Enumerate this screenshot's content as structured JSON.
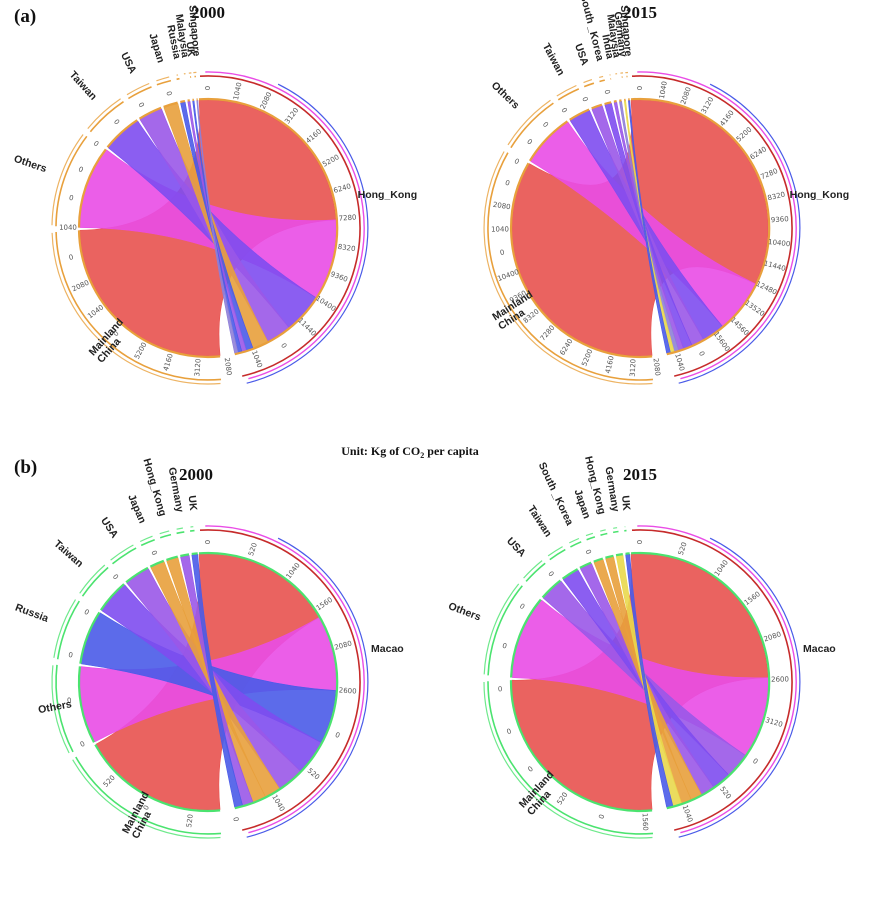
{
  "figure": {
    "panel_a_label": "(a)",
    "panel_b_label": "(b)",
    "unit_prefix": "Unit: Kg of CO",
    "unit_sub": "2",
    "unit_suffix": " per capita"
  },
  "colors": {
    "red": "#e8524f",
    "magenta": "#e94de6",
    "blue": "#4a5be8",
    "violet": "#7e4cf0",
    "purple": "#9a58e8",
    "orange": "#e8a03c",
    "yellow": "#e9d84c",
    "lavender": "#8f7fd8",
    "green": "#4be36f",
    "gold": "#d9952f",
    "dark_red": "#c62b2b"
  },
  "chart_data": [
    {
      "id": "a2000",
      "type": "chord",
      "title": "2000",
      "center": "Hong_Kong",
      "highlight": "orange",
      "ticks": [
        "0",
        "1040",
        "2080",
        "3120",
        "4160",
        "5200",
        "6240",
        "7280",
        "8320",
        "9360",
        "10400",
        "11440",
        "0",
        "1040",
        "2080",
        "3120",
        "4160",
        "5200",
        "0",
        "1040",
        "2080",
        "0",
        "1040",
        "0",
        "0",
        "0",
        "0",
        "0",
        "0"
      ],
      "groups": [
        {
          "name": "Mainland China",
          "lines": [
            "Mainland",
            "China"
          ],
          "value": 5200,
          "color": "red"
        },
        {
          "name": "Others",
          "lines": [
            "Others"
          ],
          "value": 2100,
          "color": "magenta"
        },
        {
          "name": "Taiwan",
          "lines": [
            "Taiwan"
          ],
          "value": 1040,
          "color": "violet"
        },
        {
          "name": "USA",
          "lines": [
            "USA"
          ],
          "value": 650,
          "color": "purple"
        },
        {
          "name": "Japan",
          "lines": [
            "Japan"
          ],
          "value": 420,
          "color": "orange"
        },
        {
          "name": "Russia",
          "lines": [
            "Russia"
          ],
          "value": 180,
          "color": "blue"
        },
        {
          "name": "Malaysia",
          "lines": [
            "Malaysia"
          ],
          "value": 120,
          "color": "purple"
        },
        {
          "name": "UK",
          "lines": [
            "UK"
          ],
          "value": 100,
          "color": "blue"
        },
        {
          "name": "Singapore",
          "lines": [
            "Singapore"
          ],
          "value": 90,
          "color": "lavender"
        }
      ]
    },
    {
      "id": "a2015",
      "type": "chord",
      "title": "2015",
      "center": "Hong_Kong",
      "highlight": "orange",
      "ticks": [
        "0",
        "1040",
        "2080",
        "3120",
        "4160",
        "5200",
        "6240",
        "7280",
        "8320",
        "9360",
        "10400",
        "11440",
        "12480",
        "13520",
        "14560",
        "15600",
        "0",
        "1040",
        "2080",
        "3120",
        "4160",
        "5200",
        "6240",
        "7280",
        "8320",
        "9360",
        "10400",
        "0",
        "1040",
        "2080",
        "0",
        "0",
        "0",
        "0",
        "0",
        "0",
        "0"
      ],
      "groups": [
        {
          "name": "Mainland China",
          "lines": [
            "Mainland",
            "China"
          ],
          "value": 10400,
          "color": "red"
        },
        {
          "name": "Others",
          "lines": [
            "Others"
          ],
          "value": 2100,
          "color": "magenta"
        },
        {
          "name": "Taiwan",
          "lines": [
            "Taiwan"
          ],
          "value": 900,
          "color": "violet"
        },
        {
          "name": "USA",
          "lines": [
            "USA"
          ],
          "value": 500,
          "color": "purple"
        },
        {
          "name": "South_Korea",
          "lines": [
            "South _Korea"
          ],
          "value": 350,
          "color": "violet"
        },
        {
          "name": "India",
          "lines": [
            "India"
          ],
          "value": 200,
          "color": "purple"
        },
        {
          "name": "Malaysia",
          "lines": [
            "Malaysia"
          ],
          "value": 180,
          "color": "lavender"
        },
        {
          "name": "Germany",
          "lines": [
            "Germany"
          ],
          "value": 150,
          "color": "yellow"
        },
        {
          "name": "Singapore",
          "lines": [
            "Singapore"
          ],
          "value": 150,
          "color": "blue"
        }
      ]
    },
    {
      "id": "b2000",
      "type": "chord",
      "title": "2000",
      "center": "Macao",
      "highlight": "green",
      "ticks": [
        "0",
        "520",
        "1040",
        "1560",
        "2080",
        "2600",
        "0",
        "520",
        "1040",
        "0",
        "520",
        "0",
        "520",
        "0",
        "0",
        "0",
        "0",
        "0",
        "0"
      ],
      "groups": [
        {
          "name": "Mainland China",
          "lines": [
            "Mainland",
            "China"
          ],
          "value": 1050,
          "color": "red"
        },
        {
          "name": "Others",
          "lines": [
            "Others"
          ],
          "value": 560,
          "color": "magenta"
        },
        {
          "name": "Russia",
          "lines": [
            "Russia"
          ],
          "value": 400,
          "color": "blue"
        },
        {
          "name": "Taiwan",
          "lines": [
            "Taiwan"
          ],
          "value": 260,
          "color": "violet"
        },
        {
          "name": "USA",
          "lines": [
            "USA"
          ],
          "value": 200,
          "color": "purple"
        },
        {
          "name": "Japan",
          "lines": [
            "Japan"
          ],
          "value": 120,
          "color": "orange"
        },
        {
          "name": "Hong_Kong",
          "lines": [
            "Hong_Kong"
          ],
          "value": 100,
          "color": "orange"
        },
        {
          "name": "Germany",
          "lines": [
            "Germany"
          ],
          "value": 80,
          "color": "purple"
        },
        {
          "name": "UK",
          "lines": [
            "UK"
          ],
          "value": 60,
          "color": "blue"
        }
      ]
    },
    {
      "id": "b2015",
      "type": "chord",
      "title": "2015",
      "center": "Macao",
      "highlight": "green",
      "ticks": [
        "0",
        "520",
        "1040",
        "1560",
        "2080",
        "2600",
        "3120",
        "0",
        "520",
        "1040",
        "1560",
        "0",
        "520",
        "0",
        "0",
        "0",
        "0",
        "0",
        "0",
        "0"
      ],
      "groups": [
        {
          "name": "Mainland China",
          "lines": [
            "Mainland",
            "China"
          ],
          "value": 1600,
          "color": "red"
        },
        {
          "name": "Others",
          "lines": [
            "Others"
          ],
          "value": 640,
          "color": "magenta"
        },
        {
          "name": "USA",
          "lines": [
            "USA"
          ],
          "value": 200,
          "color": "purple"
        },
        {
          "name": "Taiwan",
          "lines": [
            "Taiwan"
          ],
          "value": 150,
          "color": "violet"
        },
        {
          "name": "South_Korea",
          "lines": [
            "South _Korea"
          ],
          "value": 110,
          "color": "purple"
        },
        {
          "name": "Japan",
          "lines": [
            "Japan"
          ],
          "value": 90,
          "color": "orange"
        },
        {
          "name": "Hong_Kong",
          "lines": [
            "Hong_Kong"
          ],
          "value": 80,
          "color": "orange"
        },
        {
          "name": "Germany",
          "lines": [
            "Germany"
          ],
          "value": 70,
          "color": "yellow"
        },
        {
          "name": "UK",
          "lines": [
            "UK"
          ],
          "value": 50,
          "color": "blue"
        }
      ]
    }
  ]
}
